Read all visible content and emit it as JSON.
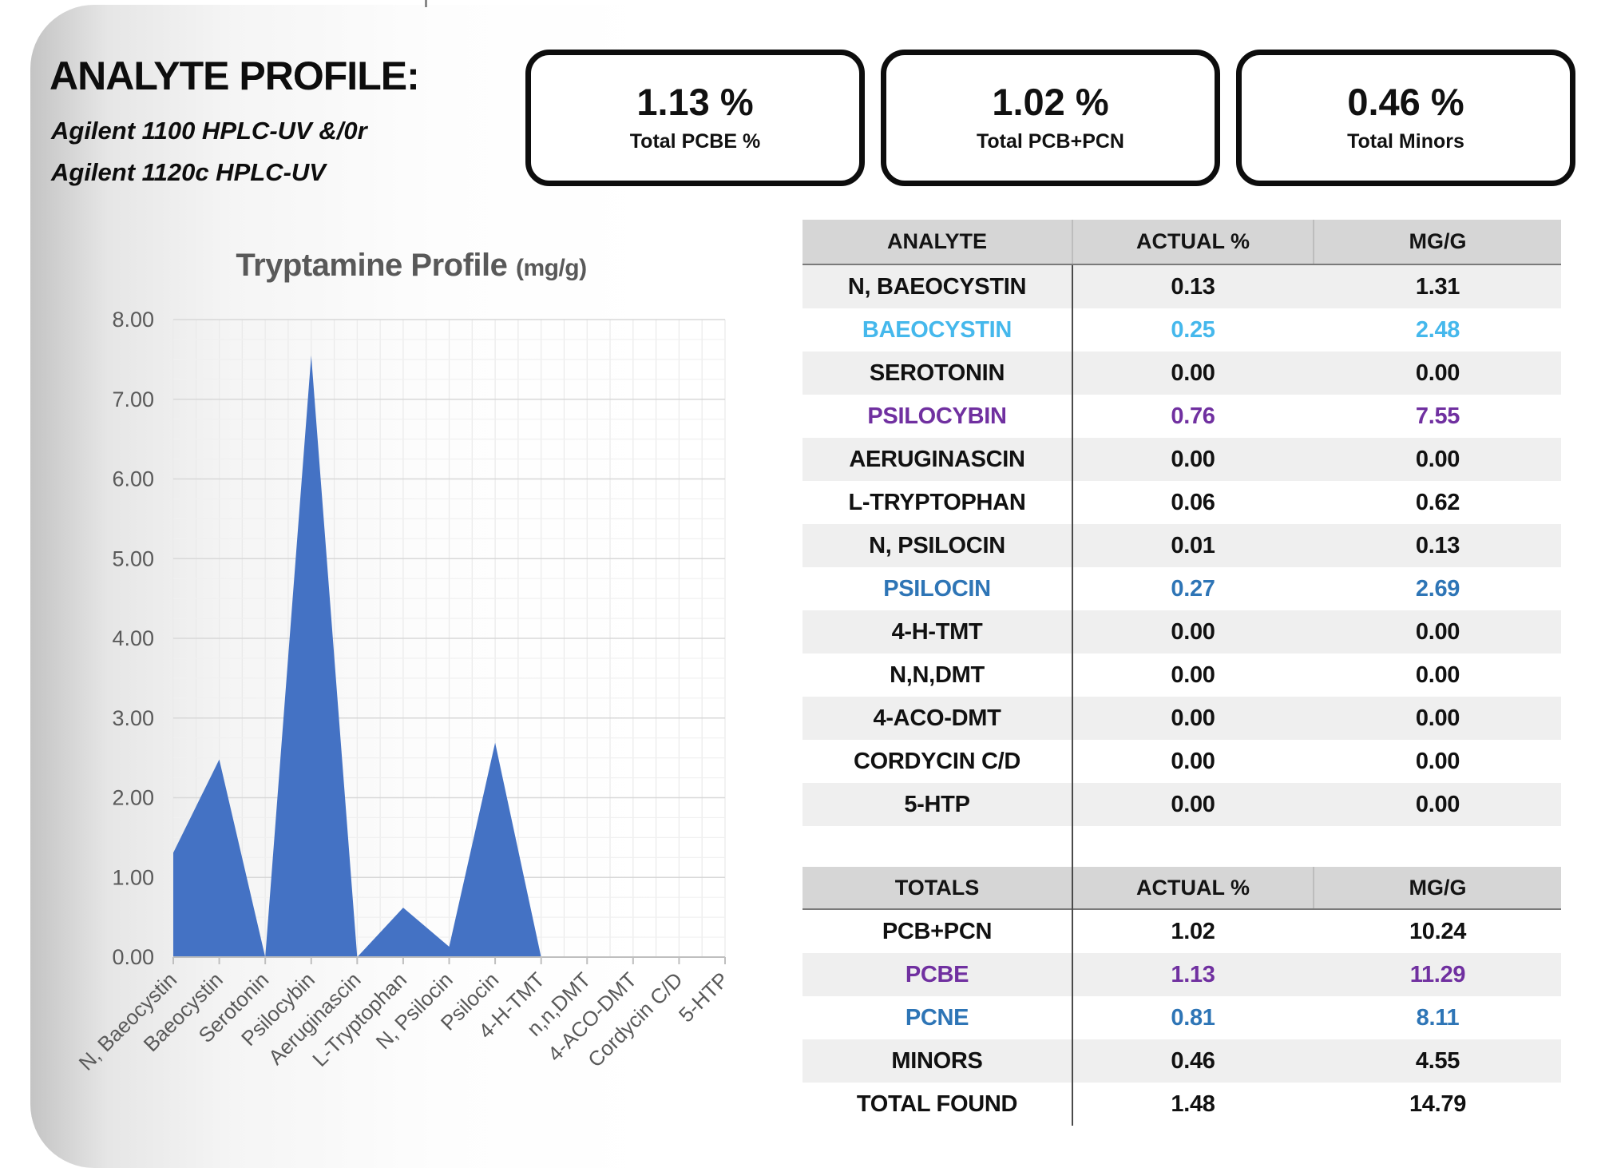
{
  "header": {
    "title": "ANALYTE PROFILE:",
    "subtitle_line1": "Agilent 1100 HPLC-UV &/0r",
    "subtitle_line2": "Agilent 1120c HPLC-UV"
  },
  "stat_boxes": [
    {
      "value": "1.13 %",
      "label": "Total PCBE %"
    },
    {
      "value": "1.02 %",
      "label": "Total PCB+PCN"
    },
    {
      "value": "0.46 %",
      "label": "Total Minors"
    }
  ],
  "chart_data": {
    "type": "area",
    "title": "Tryptamine Profile",
    "title_unit": "(mg/g)",
    "categories": [
      "N, Baeocystin",
      "Baeocystin",
      "Serotonin",
      "Psilocybin",
      "Aeruginascin",
      "L-Tryptophan",
      "N, Psilocin",
      "Psilocin",
      "4-H-TMT",
      "n,n,DMT",
      "4-ACO-DMT",
      "Cordycin C/D",
      "5-HTP"
    ],
    "values": [
      1.31,
      2.48,
      0.0,
      7.55,
      0.0,
      0.62,
      0.13,
      2.69,
      0.0,
      0.0,
      0.0,
      0.0,
      0.0
    ],
    "ylabel": "",
    "xlabel": "",
    "ylim": [
      0,
      8
    ],
    "ytick_step": 1,
    "ytick_format": "0.00",
    "grid": "major+minor",
    "legend": "none",
    "series_color": "#4472C4"
  },
  "analyte_table": {
    "headers": [
      "ANALYTE",
      "ACTUAL %",
      "MG/G"
    ],
    "rows": [
      {
        "name": "N, BAEOCYSTIN",
        "actual": "0.13",
        "mgg": "1.31",
        "color": "default"
      },
      {
        "name": "BAEOCYSTIN",
        "actual": "0.25",
        "mgg": "2.48",
        "color": "lightblue"
      },
      {
        "name": "SEROTONIN",
        "actual": "0.00",
        "mgg": "0.00",
        "color": "default"
      },
      {
        "name": "PSILOCYBIN",
        "actual": "0.76",
        "mgg": "7.55",
        "color": "purple"
      },
      {
        "name": "AERUGINASCIN",
        "actual": "0.00",
        "mgg": "0.00",
        "color": "default"
      },
      {
        "name": "L-TRYPTOPHAN",
        "actual": "0.06",
        "mgg": "0.62",
        "color": "default"
      },
      {
        "name": "N, PSILOCIN",
        "actual": "0.01",
        "mgg": "0.13",
        "color": "default"
      },
      {
        "name": "PSILOCIN",
        "actual": "0.27",
        "mgg": "2.69",
        "color": "blue"
      },
      {
        "name": "4-H-TMT",
        "actual": "0.00",
        "mgg": "0.00",
        "color": "default"
      },
      {
        "name": "N,N,DMT",
        "actual": "0.00",
        "mgg": "0.00",
        "color": "default"
      },
      {
        "name": "4-ACO-DMT",
        "actual": "0.00",
        "mgg": "0.00",
        "color": "default"
      },
      {
        "name": "CORDYCIN C/D",
        "actual": "0.00",
        "mgg": "0.00",
        "color": "default"
      },
      {
        "name": "5-HTP",
        "actual": "0.00",
        "mgg": "0.00",
        "color": "default"
      }
    ]
  },
  "totals_table": {
    "headers": [
      "TOTALS",
      "ACTUAL %",
      "MG/G"
    ],
    "rows": [
      {
        "name": "PCB+PCN",
        "actual": "1.02",
        "mgg": "10.24",
        "color": "default"
      },
      {
        "name": "PCBE",
        "actual": "1.13",
        "mgg": "11.29",
        "color": "purple"
      },
      {
        "name": "PCNE",
        "actual": "0.81",
        "mgg": "8.11",
        "color": "blue"
      },
      {
        "name": "MINORS",
        "actual": "0.46",
        "mgg": "4.55",
        "color": "default"
      },
      {
        "name": "TOTAL FOUND",
        "actual": "1.48",
        "mgg": "14.79",
        "color": "default"
      }
    ]
  },
  "colors": {
    "lightblue": "#45B8EC",
    "blue": "#2E75B6",
    "purple": "#7030A0",
    "area": "#4472C4",
    "axis_text": "#595959"
  }
}
